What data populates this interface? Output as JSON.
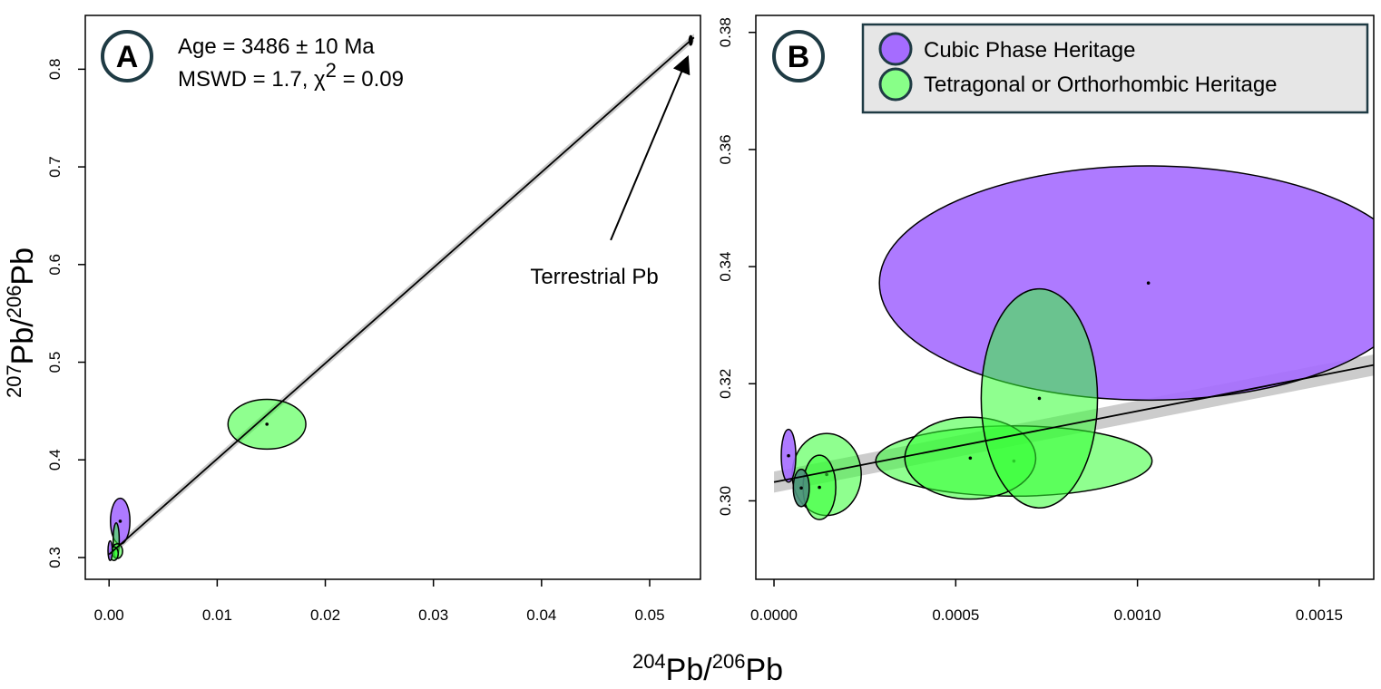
{
  "colors": {
    "cubic_fill": "#a56cff",
    "tetra_fill": "#33ff33",
    "tetra_fill_light": "#88ff88",
    "overlap_fill": "#4a8f7a",
    "band": "#bbbbbb",
    "legend_bg": "#e6e6e6",
    "legend_border": "#1f3b44",
    "badge_border": "#1f3b44"
  },
  "shared": {
    "xlabel_pre": "204",
    "xlabel_mid": "Pb/",
    "xlabel_sup2": "206",
    "xlabel_end": "Pb",
    "ylabel_pre": "207",
    "ylabel_mid": "Pb/",
    "ylabel_sup2": "206",
    "ylabel_end": "Pb"
  },
  "chart_data": [
    {
      "panel": "A",
      "type": "scatter",
      "xlim": [
        -0.0022,
        0.0547
      ],
      "ylim": [
        0.2777,
        0.8551
      ],
      "xticks": [
        0.0,
        0.01,
        0.02,
        0.03,
        0.04,
        0.05
      ],
      "xtick_labels": [
        "0.00",
        "0.01",
        "0.02",
        "0.03",
        "0.04",
        "0.05"
      ],
      "yticks": [
        0.3,
        0.4,
        0.5,
        0.6,
        0.7,
        0.8
      ],
      "ytick_labels": [
        "0.3",
        "0.4",
        "0.5",
        "0.6",
        "0.7",
        "0.8"
      ],
      "annotations": {
        "age": "Age = 3486 ± 10 Ma",
        "mswd_prefix": "MSWD = 1.7, ",
        "chi": "χ",
        "chi_sup": "2",
        "chi_suffix": " = 0.09",
        "terrestrial": "Terrestrial Pb"
      },
      "isochron": {
        "x": [
          0.0,
          0.0541
        ],
        "y": [
          0.3032,
          0.8325
        ]
      },
      "terrestrial_point": {
        "x": 0.0538,
        "y": 0.8295
      },
      "arrow_from": {
        "x": 0.0464,
        "y": 0.625
      },
      "ellipses": [
        {
          "group": "tetragonal_orthorhombic",
          "x": 0.0146,
          "y": 0.4365,
          "sx": 0.0036,
          "sy": 0.0255,
          "dot": true
        },
        {
          "group": "cubic",
          "x": 0.00103,
          "y": 0.3372,
          "sx": 0.0009,
          "sy": 0.0235,
          "dot": true
        },
        {
          "group": "tetragonal_orthorhombic",
          "x": 0.00066,
          "y": 0.3175,
          "sx": 0.00028,
          "sy": 0.018,
          "dot": false
        },
        {
          "group": "tetragonal_orthorhombic",
          "x": 0.00075,
          "y": 0.3065,
          "sx": 0.0005,
          "sy": 0.0075,
          "dot": false
        },
        {
          "group": "tetragonal_orthorhombic",
          "x": 0.00045,
          "y": 0.304,
          "sx": 0.0004,
          "sy": 0.007,
          "dot": false
        },
        {
          "group": "cubic",
          "x": 0.0001,
          "y": 0.307,
          "sx": 0.0002,
          "sy": 0.01,
          "dot": false
        }
      ]
    },
    {
      "panel": "B",
      "type": "scatter",
      "xlim": [
        -5e-05,
        0.00165
      ],
      "ylim": [
        0.2866,
        0.3829
      ],
      "xticks": [
        0.0,
        0.0005,
        0.001,
        0.0015
      ],
      "xtick_labels": [
        "0.0000",
        "0.0005",
        "0.0010",
        "0.0015"
      ],
      "yticks": [
        0.3,
        0.32,
        0.34,
        0.36,
        0.38
      ],
      "ytick_labels": [
        "0.30",
        "0.32",
        "0.34",
        "0.36",
        "0.38"
      ],
      "legend": [
        {
          "label": "Cubic Phase Heritage",
          "group": "cubic"
        },
        {
          "label": "Tetragonal or Orthorhombic Heritage",
          "group": "tetragonal_orthorhombic"
        }
      ],
      "isochron": {
        "x": [
          0.0,
          0.00165
        ],
        "y": [
          0.3032,
          0.3232
        ]
      },
      "ellipses": [
        {
          "group": "cubic",
          "x": 0.00103,
          "y": 0.3372,
          "sx": 0.00074,
          "sy": 0.02,
          "dot": true
        },
        {
          "group": "tetragonal_orthorhombic",
          "x": 0.00066,
          "y": 0.3068,
          "sx": 0.00038,
          "sy": 0.006,
          "dot": true
        },
        {
          "group": "tetragonal_orthorhombic",
          "x": 0.00054,
          "y": 0.3073,
          "sx": 0.00018,
          "sy": 0.007,
          "dot": true
        },
        {
          "group": "tetragonal_orthorhombic",
          "x": 0.00073,
          "y": 0.3175,
          "sx": 0.00016,
          "sy": 0.0187,
          "dot": true
        },
        {
          "group": "tetragonal_orthorhombic",
          "x": 0.000145,
          "y": 0.3045,
          "sx": 9.5e-05,
          "sy": 0.007,
          "dot": true
        },
        {
          "group": "tetragonal_orthorhombic",
          "x": 0.000125,
          "y": 0.3023,
          "sx": 4.5e-05,
          "sy": 0.0055,
          "dot": true
        },
        {
          "group": "cubic",
          "x": 4e-05,
          "y": 0.3077,
          "sx": 2e-05,
          "sy": 0.0045,
          "dot": true
        },
        {
          "group": "overlap",
          "x": 7.5e-05,
          "y": 0.3022,
          "sx": 2.2e-05,
          "sy": 0.0032,
          "dot": true
        }
      ]
    }
  ]
}
